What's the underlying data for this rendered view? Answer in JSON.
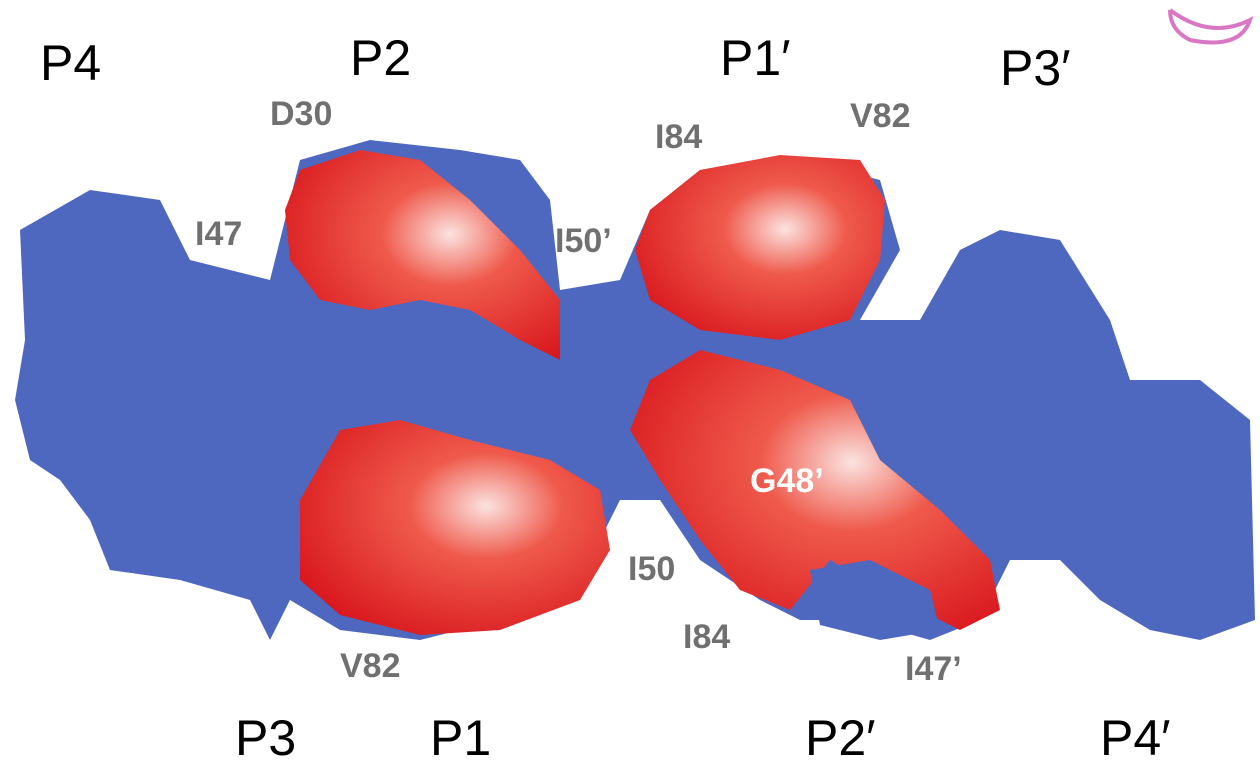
{
  "pocket_labels": [
    "P4",
    "P2",
    "P1′",
    "P3′",
    "P3",
    "P1",
    "P2′",
    "P4′"
  ],
  "residue_labels": [
    "D30",
    "I47",
    "I50’",
    "I84",
    "V82",
    "G48’",
    "I50",
    "I84",
    "V82",
    "I47’"
  ]
}
